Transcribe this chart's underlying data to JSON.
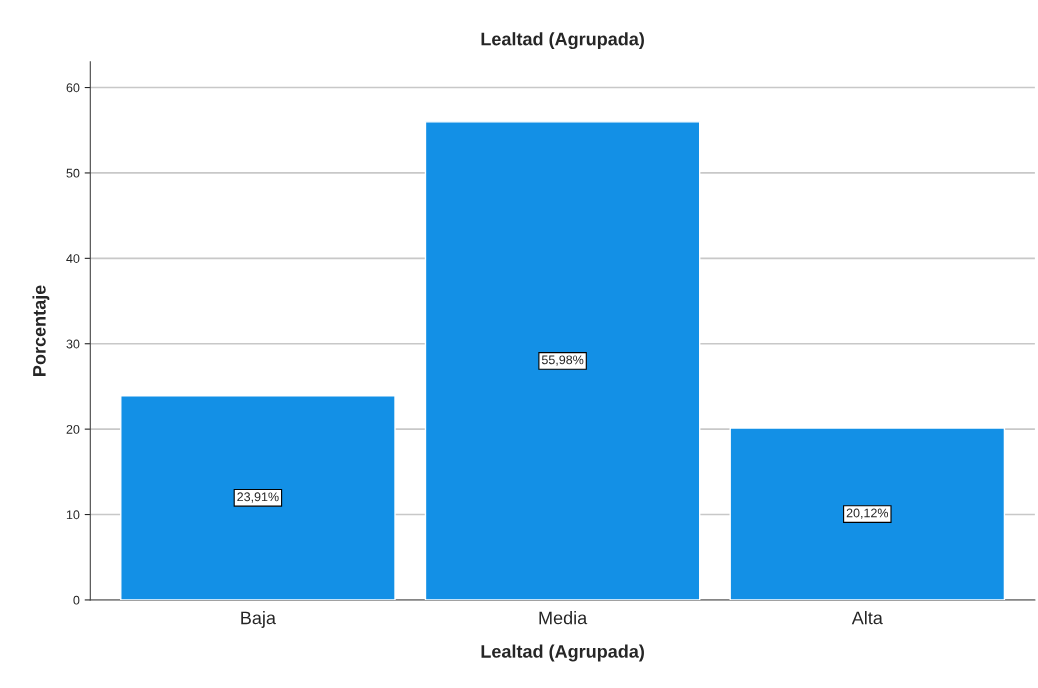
{
  "chart_data": {
    "type": "bar",
    "title": "Lealtad (Agrupada)",
    "xlabel": "Lealtad (Agrupada)",
    "ylabel": "Porcentaje",
    "categories": [
      "Baja",
      "Media",
      "Alta"
    ],
    "values": [
      23.91,
      55.98,
      20.12
    ],
    "value_labels": [
      "23,91%",
      "55,98%",
      "20,12%"
    ],
    "color": "#1390e6",
    "ylim": [
      0,
      63
    ],
    "yticks": [
      0,
      10,
      20,
      30,
      40,
      50,
      60
    ],
    "grid": "y"
  }
}
